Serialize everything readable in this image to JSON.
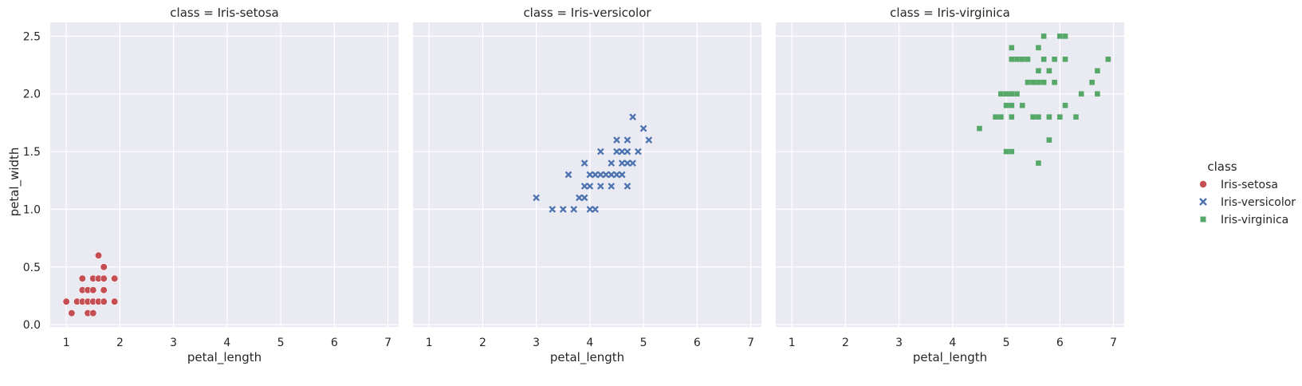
{
  "chart_data": {
    "type": "scatter",
    "ylabel": "petal_width",
    "x_ticks": [
      "1",
      "2",
      "3",
      "4",
      "5",
      "6",
      "7"
    ],
    "y_ticks": [
      "0.0",
      "0.5",
      "1.0",
      "1.5",
      "2.0",
      "2.5"
    ],
    "xlim": [
      0.7,
      7.2
    ],
    "ylim": [
      -0.02,
      2.62
    ],
    "grid": true,
    "legend": {
      "title": "class",
      "placement": "right",
      "entries": [
        {
          "label": "Iris-setosa",
          "marker": "circle",
          "color": "#c44e52"
        },
        {
          "label": "Iris-versicolor",
          "marker": "x",
          "color": "#4c72b0"
        },
        {
          "label": "Iris-virginica",
          "marker": "square",
          "color": "#55a868"
        }
      ]
    },
    "panels": [
      {
        "title": "class = Iris-setosa",
        "xlabel": "petal_length",
        "marker": "circle",
        "color": "#c44e52",
        "points": [
          [
            1.0,
            0.2
          ],
          [
            1.1,
            0.1
          ],
          [
            1.2,
            0.2
          ],
          [
            1.3,
            0.2
          ],
          [
            1.3,
            0.3
          ],
          [
            1.3,
            0.4
          ],
          [
            1.4,
            0.1
          ],
          [
            1.4,
            0.2
          ],
          [
            1.4,
            0.3
          ],
          [
            1.5,
            0.1
          ],
          [
            1.5,
            0.2
          ],
          [
            1.5,
            0.3
          ],
          [
            1.5,
            0.4
          ],
          [
            1.6,
            0.2
          ],
          [
            1.6,
            0.4
          ],
          [
            1.6,
            0.6
          ],
          [
            1.7,
            0.2
          ],
          [
            1.7,
            0.3
          ],
          [
            1.7,
            0.4
          ],
          [
            1.7,
            0.5
          ],
          [
            1.9,
            0.2
          ],
          [
            1.9,
            0.4
          ]
        ]
      },
      {
        "title": "class = Iris-versicolor",
        "xlabel": "petal_length",
        "marker": "x",
        "color": "#4c72b0",
        "points": [
          [
            3.0,
            1.1
          ],
          [
            3.3,
            1.0
          ],
          [
            3.5,
            1.0
          ],
          [
            3.6,
            1.3
          ],
          [
            3.7,
            1.0
          ],
          [
            3.8,
            1.1
          ],
          [
            3.9,
            1.1
          ],
          [
            3.9,
            1.2
          ],
          [
            3.9,
            1.4
          ],
          [
            4.0,
            1.0
          ],
          [
            4.0,
            1.2
          ],
          [
            4.0,
            1.3
          ],
          [
            4.1,
            1.0
          ],
          [
            4.1,
            1.3
          ],
          [
            4.2,
            1.2
          ],
          [
            4.2,
            1.3
          ],
          [
            4.2,
            1.5
          ],
          [
            4.3,
            1.3
          ],
          [
            4.4,
            1.2
          ],
          [
            4.4,
            1.3
          ],
          [
            4.4,
            1.4
          ],
          [
            4.5,
            1.3
          ],
          [
            4.5,
            1.5
          ],
          [
            4.5,
            1.6
          ],
          [
            4.6,
            1.3
          ],
          [
            4.6,
            1.4
          ],
          [
            4.6,
            1.5
          ],
          [
            4.7,
            1.2
          ],
          [
            4.7,
            1.4
          ],
          [
            4.7,
            1.5
          ],
          [
            4.7,
            1.6
          ],
          [
            4.8,
            1.4
          ],
          [
            4.8,
            1.8
          ],
          [
            4.9,
            1.5
          ],
          [
            5.0,
            1.7
          ],
          [
            5.1,
            1.6
          ]
        ]
      },
      {
        "title": "class = Iris-virginica",
        "xlabel": "petal_length",
        "marker": "square",
        "color": "#55a868",
        "points": [
          [
            4.5,
            1.7
          ],
          [
            4.8,
            1.8
          ],
          [
            4.9,
            1.8
          ],
          [
            4.9,
            2.0
          ],
          [
            5.0,
            1.5
          ],
          [
            5.0,
            1.9
          ],
          [
            5.0,
            2.0
          ],
          [
            5.1,
            1.5
          ],
          [
            5.1,
            1.8
          ],
          [
            5.1,
            1.9
          ],
          [
            5.1,
            2.0
          ],
          [
            5.1,
            2.3
          ],
          [
            5.1,
            2.4
          ],
          [
            5.2,
            2.0
          ],
          [
            5.2,
            2.3
          ],
          [
            5.3,
            1.9
          ],
          [
            5.3,
            2.3
          ],
          [
            5.4,
            2.1
          ],
          [
            5.4,
            2.3
          ],
          [
            5.5,
            1.8
          ],
          [
            5.5,
            2.1
          ],
          [
            5.6,
            1.4
          ],
          [
            5.6,
            1.8
          ],
          [
            5.6,
            2.1
          ],
          [
            5.6,
            2.2
          ],
          [
            5.6,
            2.4
          ],
          [
            5.7,
            2.1
          ],
          [
            5.7,
            2.3
          ],
          [
            5.7,
            2.5
          ],
          [
            5.8,
            1.6
          ],
          [
            5.8,
            1.8
          ],
          [
            5.8,
            2.2
          ],
          [
            5.9,
            2.1
          ],
          [
            5.9,
            2.3
          ],
          [
            6.0,
            1.8
          ],
          [
            6.0,
            2.5
          ],
          [
            6.1,
            1.9
          ],
          [
            6.1,
            2.3
          ],
          [
            6.1,
            2.5
          ],
          [
            6.3,
            1.8
          ],
          [
            6.4,
            2.0
          ],
          [
            6.6,
            2.1
          ],
          [
            6.7,
            2.0
          ],
          [
            6.7,
            2.2
          ],
          [
            6.9,
            2.3
          ]
        ]
      }
    ]
  }
}
